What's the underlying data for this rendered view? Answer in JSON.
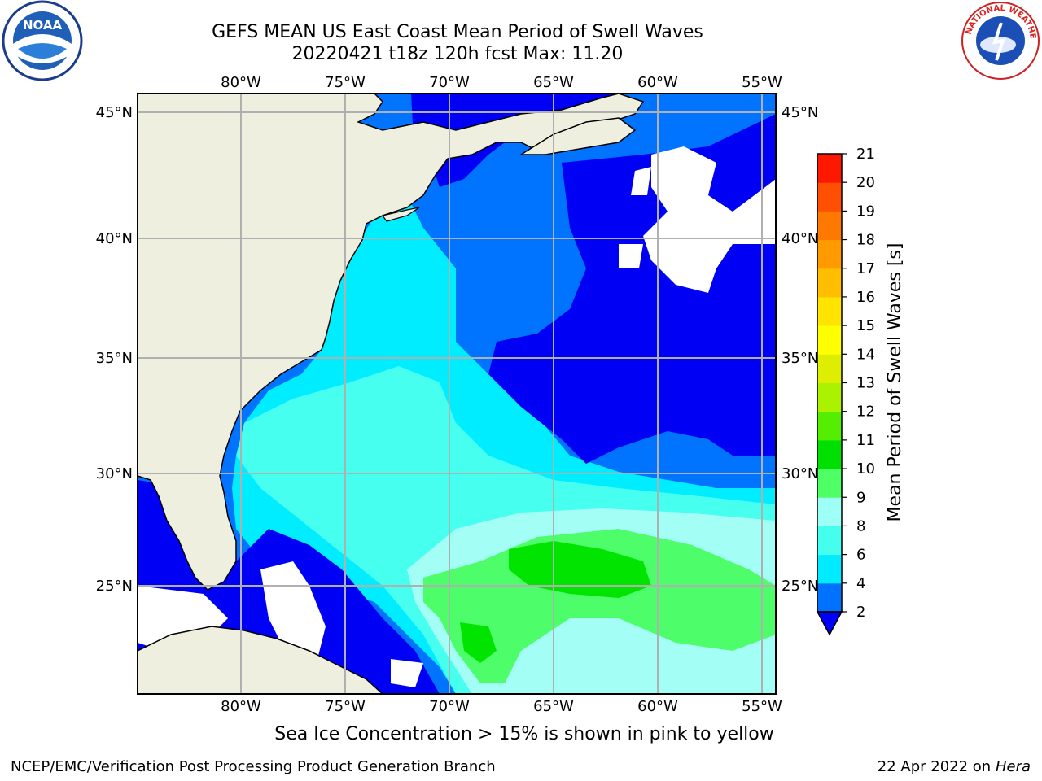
{
  "title": {
    "line1": "GEFS MEAN US East Coast Mean Period of Swell Waves",
    "line2": "20220421 t18z 120h fcst   Max: 11.20"
  },
  "logos": {
    "left": {
      "icon": "noaa-logo",
      "text": "NOAA"
    },
    "right": {
      "icon": "national-weather-service-logo",
      "text": "NATIONAL WEATHER SERVICE"
    }
  },
  "map": {
    "lon_labels": [
      "80°W",
      "75°W",
      "70°W",
      "65°W",
      "60°W",
      "55°W"
    ],
    "lat_labels": [
      "45°N",
      "40°N",
      "35°N",
      "30°N",
      "25°N"
    ],
    "land_color": "#efefdf",
    "ocean_colors": {
      "swell_2_4": "#0000f5",
      "swell_4_6": "#0073ff",
      "swell_6_8": "#00ecff",
      "swell_8_9": "#47ffef",
      "swell_9_10": "#a3fff5",
      "swell_10_11": "#4dfd6a",
      "swell_11_12": "#00e400"
    }
  },
  "colorbar": {
    "label": "Mean Period of Swell Waves [s]",
    "ticks": [
      "2",
      "4",
      "6",
      "8",
      "9",
      "10",
      "11",
      "12",
      "13",
      "14",
      "15",
      "16",
      "17",
      "18",
      "19",
      "20",
      "21"
    ],
    "colors": [
      "#0072ff",
      "#00ebff",
      "#44ffee",
      "#9dfff5",
      "#4fff66",
      "#00e000",
      "#55ee00",
      "#aaf200",
      "#ddee00",
      "#ffff00",
      "#ffe400",
      "#ffbe00",
      "#ff9a00",
      "#ff7800",
      "#ff4f00",
      "#ff1800"
    ],
    "under_color": "#0000ff"
  },
  "caption": "Sea Ice Concentration > 15% is shown in pink to yellow",
  "footer": {
    "left": "NCEP/EMC/Verification Post Processing Product Generation Branch",
    "right_date": "22 Apr 2022 on",
    "right_host": "Hera"
  }
}
